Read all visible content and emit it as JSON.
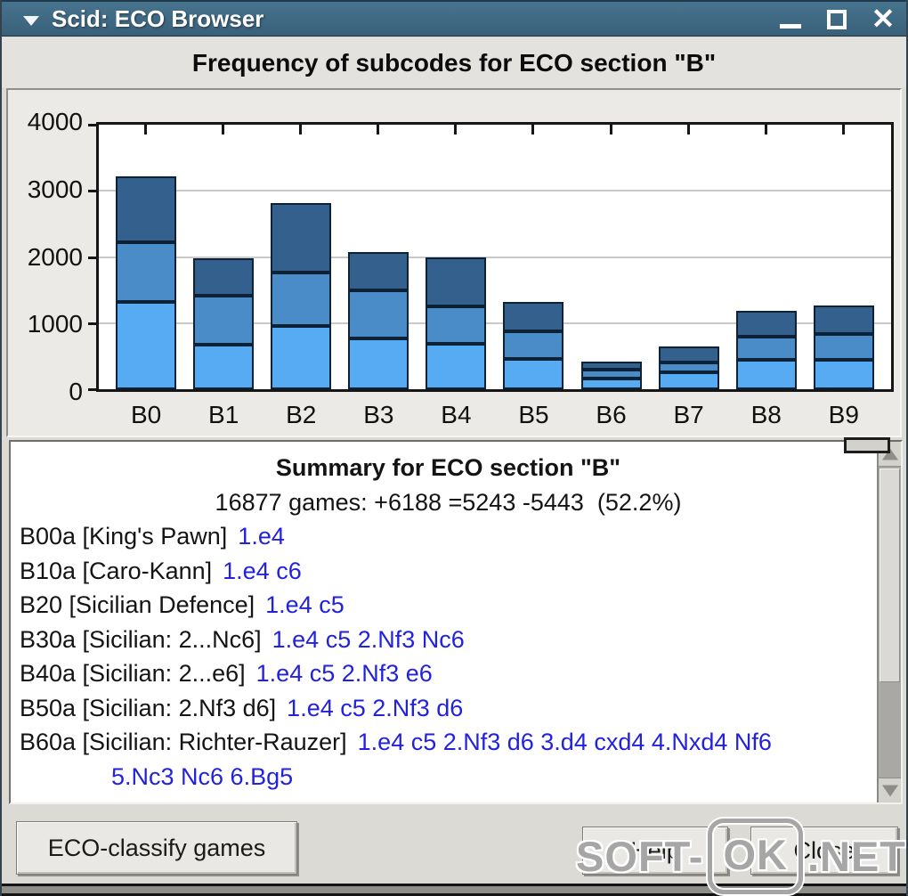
{
  "window": {
    "title": "Scid: ECO Browser"
  },
  "header": {
    "title": "Frequency of subcodes for ECO section \"B\""
  },
  "chart_data": {
    "type": "bar",
    "stacked": true,
    "title": "Frequency of subcodes for ECO section \"B\"",
    "xlabel": "",
    "ylabel": "",
    "categories": [
      "B0",
      "B1",
      "B2",
      "B3",
      "B4",
      "B5",
      "B6",
      "B7",
      "B8",
      "B9"
    ],
    "series": [
      {
        "name": "bottom-segment",
        "color": "#56abf3",
        "values": [
          1320,
          680,
          950,
          770,
          690,
          460,
          160,
          250,
          440,
          450
        ]
      },
      {
        "name": "middle-segment",
        "color": "#4a8cc8",
        "values": [
          900,
          740,
          810,
          730,
          560,
          420,
          130,
          150,
          350,
          380
        ]
      },
      {
        "name": "top-segment",
        "color": "#33608c",
        "values": [
          1000,
          560,
          1060,
          580,
          750,
          440,
          130,
          250,
          390,
          430
        ]
      }
    ],
    "totals": [
      3220,
      1980,
      2820,
      2080,
      2000,
      1320,
      420,
      650,
      1180,
      1260
    ],
    "ylim": [
      0,
      4000
    ],
    "yticks": [
      0,
      1000,
      2000,
      3000,
      4000
    ],
    "grid": "horizontal gridlines at 1000, 2000, 3000",
    "legend": "none",
    "plot_bg": "#ffffff"
  },
  "summary": {
    "title": "Summary for ECO section \"B\"",
    "stats": "16877 games: +6188 =5243 -5443  (52.2%)",
    "entries": [
      {
        "label": "B00a [King's Pawn]",
        "moves": "1.e4"
      },
      {
        "label": "B10a [Caro-Kann]",
        "moves": "1.e4 c6"
      },
      {
        "label": "B20 [Sicilian Defence]",
        "moves": "1.e4 c5"
      },
      {
        "label": "B30a [Sicilian: 2...Nc6]",
        "moves": "1.e4 c5 2.Nf3 Nc6"
      },
      {
        "label": "B40a [Sicilian: 2...e6]",
        "moves": "1.e4 c5 2.Nf3 e6"
      },
      {
        "label": "B50a [Sicilian: 2.Nf3 d6]",
        "moves": "1.e4 c5 2.Nf3 d6"
      },
      {
        "label": "B60a [Sicilian: Richter-Rauzer]",
        "moves": "1.e4 c5 2.Nf3 d6 3.d4 cxd4 4.Nxd4 Nf6",
        "continuation": "5.Nc3 Nc6 6.Bg5"
      }
    ]
  },
  "buttons": {
    "classify": "ECO-classify games",
    "help": "Help",
    "close": "Close"
  },
  "watermark": {
    "prefix": "SOFT-",
    "badge": "OK",
    "suffix": ".NET"
  },
  "colors": {
    "titlebar": "#3d6a87",
    "window_bg": "#dcdad5",
    "panel_bg": "#ebeae6",
    "move_link": "#2222dd",
    "bar_border": "#0e2237"
  }
}
